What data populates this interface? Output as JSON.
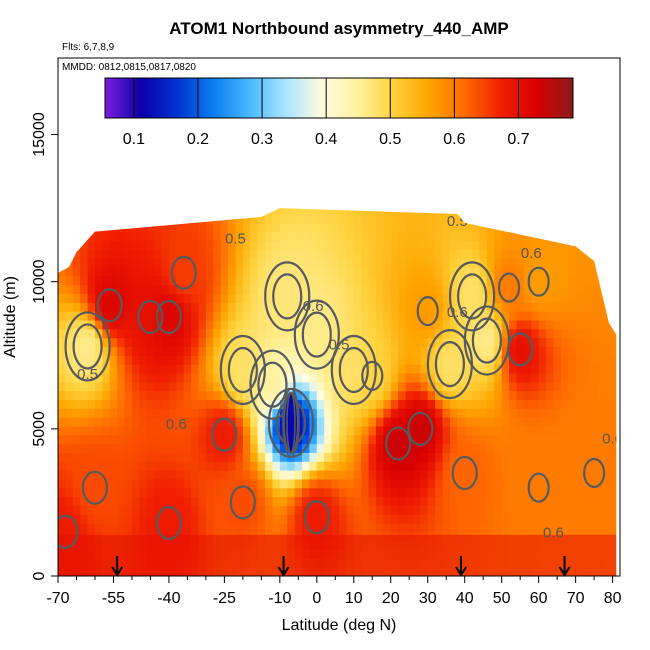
{
  "chart_data": {
    "type": "heatmap",
    "title": "ATOM1 Northbound asymmetry_440_AMP",
    "annotations": [
      "Flts: 6,7,8,9",
      "MMDD: 0812,0815,0817,0820"
    ],
    "xlabel": "Latitude (deg N)",
    "ylabel": "Altitude (m)",
    "xlim": [
      -70,
      82
    ],
    "ylim": [
      0,
      17600
    ],
    "x_ticks": [
      -70,
      -55,
      -40,
      -25,
      -10,
      0,
      10,
      20,
      30,
      40,
      50,
      60,
      70,
      80
    ],
    "x_tick_labels": [
      "-70",
      "-55",
      "-40",
      "-25",
      "-10",
      "0",
      "10",
      "20",
      "30",
      "40",
      "50",
      "60",
      "70",
      "80"
    ],
    "x_minor_ticks": [
      -65,
      -60,
      -50,
      -45,
      -35,
      -30,
      -20,
      -15,
      -5,
      5,
      15,
      25,
      35,
      45,
      55,
      65,
      75
    ],
    "y_ticks": [
      0,
      5000,
      10000,
      15000
    ],
    "y_tick_labels": [
      "0",
      "5000",
      "10000",
      "15000"
    ],
    "colorbar": {
      "range": [
        0.055,
        0.785
      ],
      "ticks": [
        0.1,
        0.2,
        0.3,
        0.4,
        0.5,
        0.6,
        0.7
      ],
      "tick_labels": [
        "0.1",
        "0.2",
        "0.3",
        "0.4",
        "0.5",
        "0.6",
        "0.7"
      ],
      "colors": [
        "#7b1fe0",
        "#0a00a8",
        "#0033d0",
        "#0a7cf0",
        "#48b8ff",
        "#a8e4ff",
        "#fffbe0",
        "#fff2a0",
        "#ffd23c",
        "#ffa500",
        "#ff6a00",
        "#f02000",
        "#d80000",
        "#8c1a1a"
      ]
    },
    "contour_levels": [
      0.5,
      0.6
    ],
    "contour_labels": [
      "0.5",
      "0.5",
      "0.5",
      "0.6",
      "0.6",
      "0.6",
      "0.6",
      "0.5",
      "0.6",
      "0.6"
    ],
    "data_extent": {
      "lat_range": [
        -70,
        81
      ],
      "alt_range": [
        0,
        12900
      ]
    },
    "column_top_altitude": [
      {
        "lat": -70,
        "alt": 10300
      },
      {
        "lat": -67,
        "alt": 10500
      },
      {
        "lat": -65,
        "alt": 11000
      },
      {
        "lat": -60,
        "alt": 11700
      },
      {
        "lat": -15,
        "alt": 12200
      },
      {
        "lat": -10,
        "alt": 12500
      },
      {
        "lat": 38,
        "alt": 12300
      },
      {
        "lat": 40,
        "alt": 12000
      },
      {
        "lat": 70,
        "alt": 11200
      },
      {
        "lat": 75,
        "alt": 10700
      },
      {
        "lat": 79,
        "alt": 8600
      },
      {
        "lat": 81,
        "alt": 8200
      }
    ],
    "features": [
      {
        "lat": -56,
        "alt": 9200,
        "value": 0.72
      },
      {
        "lat": -45,
        "alt": 8800,
        "value": 0.7
      },
      {
        "lat": -40,
        "alt": 8800,
        "value": 0.72
      },
      {
        "lat": -36,
        "alt": 10300,
        "value": 0.65
      },
      {
        "lat": -20,
        "alt": 7000,
        "value": 0.48
      },
      {
        "lat": -12,
        "alt": 6500,
        "value": 0.45
      },
      {
        "lat": -8,
        "alt": 9500,
        "value": 0.47
      },
      {
        "lat": -7,
        "alt": 5200,
        "value": 0.12
      },
      {
        "lat": 0,
        "alt": 8200,
        "value": 0.46
      },
      {
        "lat": 10,
        "alt": 7000,
        "value": 0.48
      },
      {
        "lat": 15,
        "alt": 6800,
        "value": 0.5
      },
      {
        "lat": 22,
        "alt": 4500,
        "value": 0.74
      },
      {
        "lat": 28,
        "alt": 5000,
        "value": 0.74
      },
      {
        "lat": 30,
        "alt": 9000,
        "value": 0.57
      },
      {
        "lat": 36,
        "alt": 7200,
        "value": 0.48
      },
      {
        "lat": 42,
        "alt": 9500,
        "value": 0.48
      },
      {
        "lat": 46,
        "alt": 8000,
        "value": 0.46
      },
      {
        "lat": 55,
        "alt": 7700,
        "value": 0.7
      },
      {
        "lat": 60,
        "alt": 10000,
        "value": 0.57
      },
      {
        "lat": -68,
        "alt": 1500,
        "value": 0.68
      },
      {
        "lat": -60,
        "alt": 3000,
        "value": 0.64
      },
      {
        "lat": -40,
        "alt": 1800,
        "value": 0.68
      },
      {
        "lat": -20,
        "alt": 2500,
        "value": 0.64
      },
      {
        "lat": 0,
        "alt": 2000,
        "value": 0.68
      },
      {
        "lat": 40,
        "alt": 3500,
        "value": 0.62
      },
      {
        "lat": 60,
        "alt": 3000,
        "value": 0.6
      },
      {
        "lat": 75,
        "alt": 3500,
        "value": 0.6
      },
      {
        "lat": -25,
        "alt": 4800,
        "value": 0.68
      },
      {
        "lat": -62,
        "alt": 7800,
        "value": 0.46
      },
      {
        "lat": 52,
        "alt": 9800,
        "value": 0.6
      }
    ],
    "markers": {
      "type": "down-arrow",
      "lat": [
        -54,
        -9,
        39,
        67
      ]
    }
  }
}
